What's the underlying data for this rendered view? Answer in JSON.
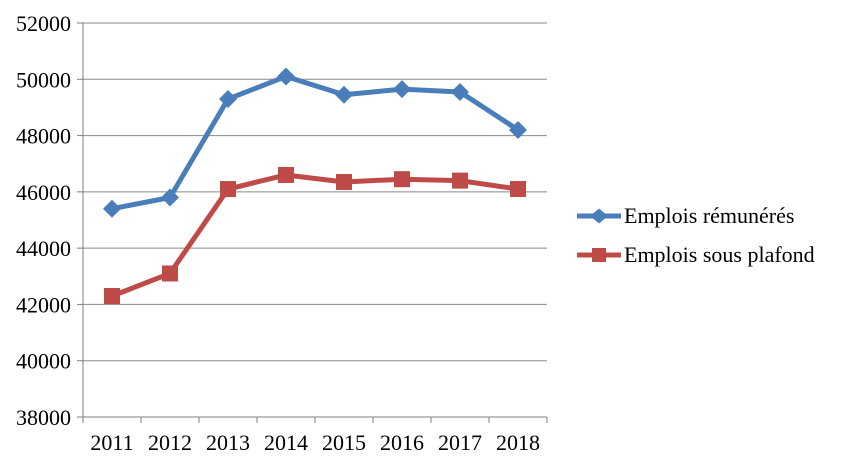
{
  "chart_data": {
    "type": "line",
    "title": "",
    "xlabel": "",
    "ylabel": "",
    "categories": [
      "2011",
      "2012",
      "2013",
      "2014",
      "2015",
      "2016",
      "2017",
      "2018"
    ],
    "series": [
      {
        "name": "Emplois rémunérés",
        "color": "#4A7EBB",
        "marker": "diamond",
        "values": [
          45400,
          45800,
          49300,
          50100,
          49450,
          49650,
          49550,
          48200
        ]
      },
      {
        "name": "Emplois sous plafond",
        "color": "#BE4B48",
        "marker": "square",
        "values": [
          42300,
          43100,
          46100,
          46600,
          46350,
          46450,
          46400,
          46100
        ]
      }
    ],
    "ylim": [
      38000,
      52000
    ],
    "ytick_step": 2000,
    "ytick_labels": [
      "38000",
      "40000",
      "42000",
      "44000",
      "46000",
      "48000",
      "50000",
      "52000"
    ],
    "grid": true,
    "legend_position": "right"
  },
  "style": {
    "grid_color": "#898989",
    "axis_color": "#7F7F7F",
    "text_color": "#000000",
    "background": "#FFFFFF"
  }
}
